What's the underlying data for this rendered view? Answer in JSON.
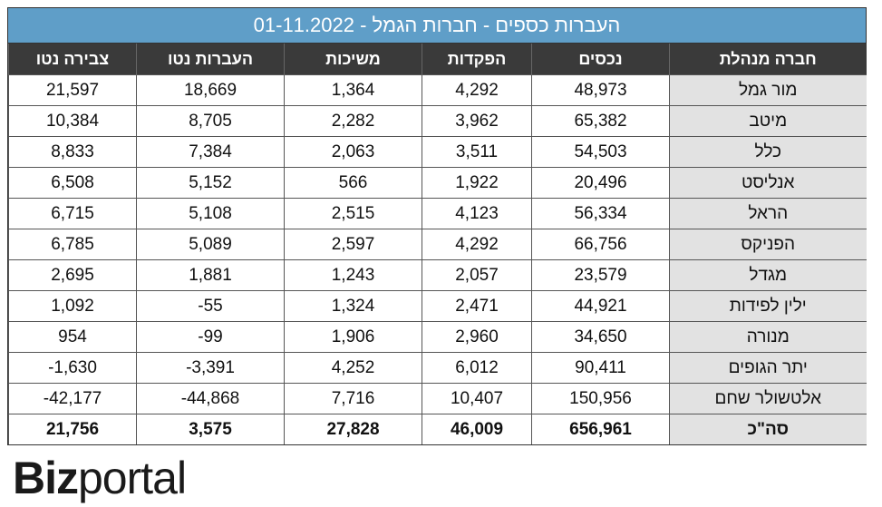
{
  "title": "העברות כספים - חברות הגמל - 01-11.2022",
  "headers": [
    "חברה מנהלת",
    "נכסים",
    "הפקדות",
    "משיכות",
    "העברות נטו",
    "צבירה נטו"
  ],
  "rows": [
    [
      "מור גמל",
      "48,973",
      "4,292",
      "1,364",
      "18,669",
      "21,597"
    ],
    [
      "מיטב",
      "65,382",
      "3,962",
      "2,282",
      "8,705",
      "10,384"
    ],
    [
      "כלל",
      "54,503",
      "3,511",
      "2,063",
      "7,384",
      "8,833"
    ],
    [
      "אנליסט",
      "20,496",
      "1,922",
      "566",
      "5,152",
      "6,508"
    ],
    [
      "הראל",
      "56,334",
      "4,123",
      "2,515",
      "5,108",
      "6,715"
    ],
    [
      "הפניקס",
      "66,756",
      "4,292",
      "2,597",
      "5,089",
      "6,785"
    ],
    [
      "מגדל",
      "23,579",
      "2,057",
      "1,243",
      "1,881",
      "2,695"
    ],
    [
      "ילין לפידות",
      "44,921",
      "2,471",
      "1,324",
      "-55",
      "1,092"
    ],
    [
      "מנורה",
      "34,650",
      "2,960",
      "1,906",
      "-99",
      "954"
    ],
    [
      "יתר הגופים",
      "90,411",
      "6,012",
      "4,252",
      "-3,391",
      "-1,630"
    ],
    [
      "אלטשולר שחם",
      "150,956",
      "10,407",
      "7,716",
      "-44,868",
      "-42,177"
    ]
  ],
  "total": [
    "סה\"כ",
    "656,961",
    "46,009",
    "27,828",
    "3,575",
    "21,756"
  ],
  "logo": {
    "biz": "Biz",
    "portal": "portal"
  },
  "colors": {
    "title_bg": "#5f9ec8",
    "header_bg": "#3a3a3a",
    "name_bg": "#e2e2e2"
  }
}
